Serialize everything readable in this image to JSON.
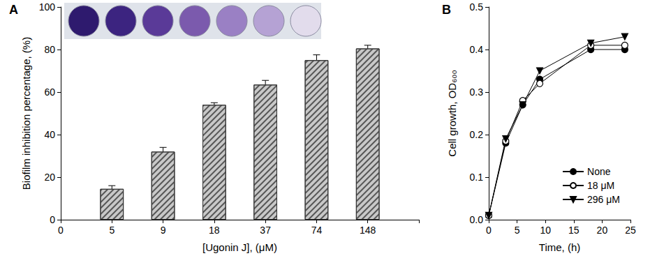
{
  "chart_data": [
    {
      "type": "bar",
      "title": "A",
      "x_label": "[Ugonin J], (μM)",
      "y_label": "Biofilm inhibition percentage, (%)",
      "categories": [
        "0",
        "5",
        "9",
        "18",
        "37",
        "74",
        "148",
        null
      ],
      "values": [
        null,
        14.5,
        32,
        54,
        63.5,
        75,
        80.5,
        null
      ],
      "errors": [
        null,
        1.5,
        2,
        1,
        2,
        2.5,
        1.5,
        null
      ],
      "color": "#c8c8c8",
      "ylim": [
        0,
        100
      ],
      "yticks": [
        0,
        20,
        40,
        60,
        80,
        100
      ],
      "grid": false
    },
    {
      "type": "line",
      "title": "B",
      "x_label": "Time, (h)",
      "y_label": "Cell growth, OD₆₀₀",
      "x": [
        0,
        3,
        6,
        9,
        18,
        24
      ],
      "series": [
        {
          "name": "None",
          "color": "#000000",
          "marker": "circle",
          "values": [
            0.01,
            0.18,
            0.27,
            0.33,
            0.4,
            0.4
          ]
        },
        {
          "name": "18 μM",
          "color": "#000000",
          "marker": "open_circle",
          "values": [
            0.01,
            0.185,
            0.28,
            0.32,
            0.41,
            0.41
          ]
        },
        {
          "name": "296 μM",
          "color": "#000000",
          "marker": "triangle_down",
          "values": [
            0.01,
            0.19,
            0.27,
            0.35,
            0.415,
            0.43
          ]
        }
      ],
      "xlim": [
        0,
        25
      ],
      "xticks": [
        0,
        5,
        10,
        15,
        20,
        25
      ],
      "ylim": [
        0,
        0.5
      ],
      "yticks": [
        {
          "value": 0,
          "label": "0.0"
        },
        {
          "value": 0.1,
          "label": "0.1"
        },
        {
          "value": 0.2,
          "label": "0.2"
        },
        {
          "value": 0.3,
          "label": "0.3"
        },
        {
          "value": 0.4,
          "label": "0.4"
        },
        {
          "value": 0.5,
          "label": "0.5"
        }
      ],
      "legend": "lower right",
      "grid": false
    }
  ]
}
